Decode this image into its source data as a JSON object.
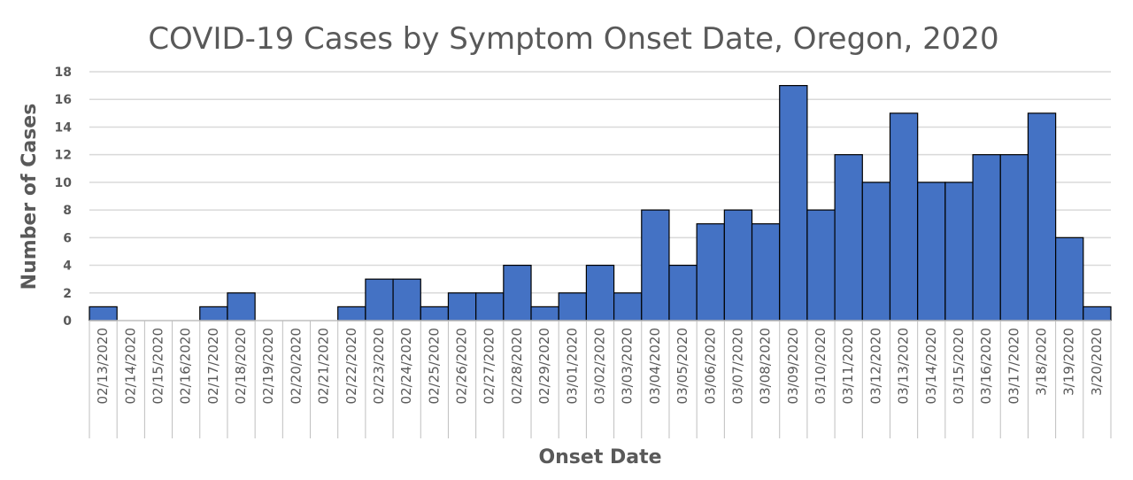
{
  "chart_data": {
    "type": "bar",
    "title": "COVID-19 Cases by Symptom Onset Date, Oregon, 2020",
    "xlabel": "Onset Date",
    "ylabel": "Number of Cases",
    "ylim": [
      0,
      18
    ],
    "yticks": [
      0,
      2,
      4,
      6,
      8,
      10,
      12,
      14,
      16,
      18
    ],
    "grid": true,
    "legend": "none",
    "categories": [
      "02/13/2020",
      "02/14/2020",
      "02/15/2020",
      "02/16/2020",
      "02/17/2020",
      "02/18/2020",
      "02/19/2020",
      "02/20/2020",
      "02/21/2020",
      "02/22/2020",
      "02/23/2020",
      "02/24/2020",
      "02/25/2020",
      "02/26/2020",
      "02/27/2020",
      "02/28/2020",
      "02/29/2020",
      "03/01/2020",
      "03/02/2020",
      "03/03/2020",
      "03/04/2020",
      "03/05/2020",
      "03/06/2020",
      "03/07/2020",
      "03/08/2020",
      "03/09/2020",
      "03/10/2020",
      "03/11/2020",
      "03/12/2020",
      "03/13/2020",
      "03/14/2020",
      "03/15/2020",
      "03/16/2020",
      "03/17/2020",
      "3/18/2020",
      "3/19/2020",
      "3/20/2020"
    ],
    "values": [
      1,
      0,
      0,
      0,
      1,
      2,
      0,
      0,
      0,
      1,
      3,
      3,
      1,
      2,
      2,
      4,
      1,
      2,
      4,
      2,
      8,
      4,
      7,
      8,
      7,
      17,
      8,
      12,
      10,
      15,
      10,
      10,
      12,
      12,
      15,
      6,
      1
    ],
    "colors": {
      "bar_fill": "#4472C4",
      "bar_stroke": "#000000",
      "grid": "#D9D9D9",
      "axis": "#BFBFBF",
      "text": "#595959"
    }
  }
}
